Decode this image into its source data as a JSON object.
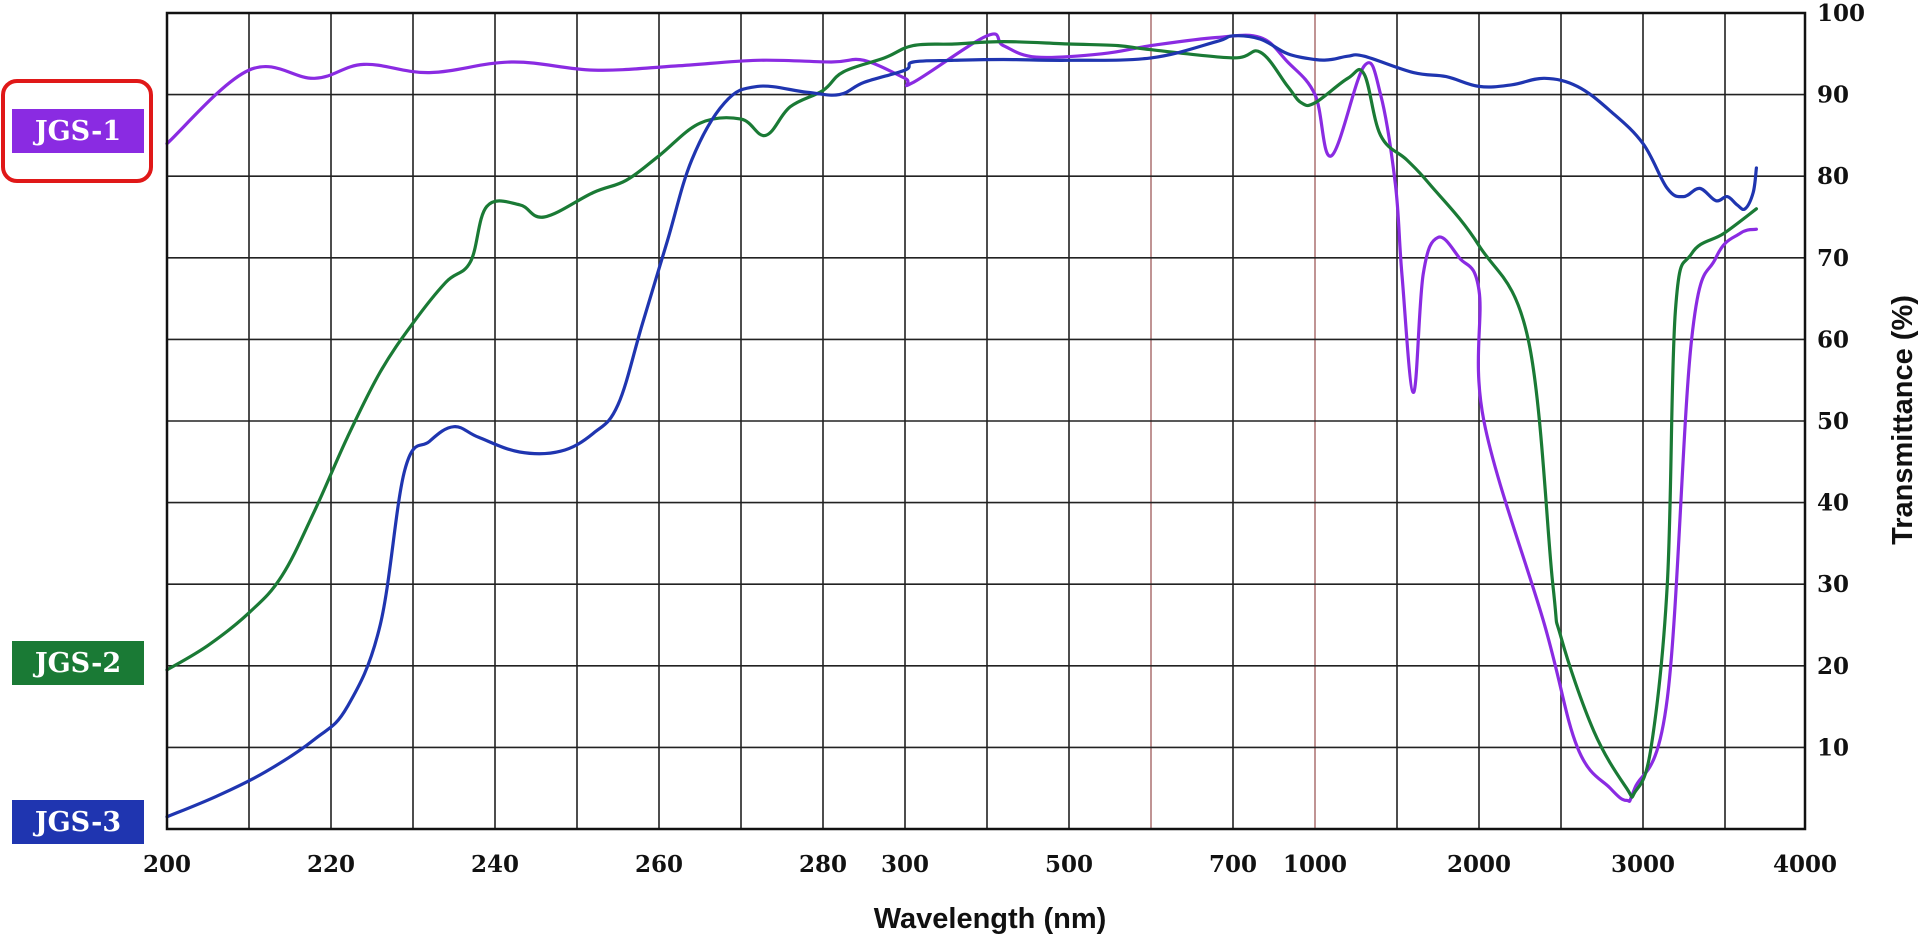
{
  "chart_data": {
    "type": "line",
    "title": "",
    "xlabel": "Wavelength (nm)",
    "ylabel": "Transmittance (%)",
    "x_tick_labels": [
      "200",
      "220",
      "240",
      "260",
      "280",
      "300",
      "500",
      "700",
      "1000",
      "2000",
      "3000",
      "4000"
    ],
    "y_tick_labels": [
      "10",
      "20",
      "30",
      "40",
      "50",
      "60",
      "70",
      "80",
      "90",
      "100"
    ],
    "ylim": [
      0,
      100
    ],
    "x_scale": "segmented",
    "grid": true,
    "legend_placement": "left",
    "highlighted_series": "JGS-1",
    "series": [
      {
        "name": "JGS-1",
        "color": "#8a2be2",
        "points": [
          [
            200,
            84
          ],
          [
            210,
            93
          ],
          [
            218,
            92
          ],
          [
            224,
            93.7
          ],
          [
            232,
            92.7
          ],
          [
            242,
            94
          ],
          [
            252,
            93
          ],
          [
            262,
            93.5
          ],
          [
            272,
            94.2
          ],
          [
            282,
            94
          ],
          [
            290,
            94.2
          ],
          [
            300,
            92
          ],
          [
            310,
            91.5
          ],
          [
            400,
            97.2
          ],
          [
            420,
            96
          ],
          [
            460,
            94.6
          ],
          [
            540,
            95
          ],
          [
            600,
            96
          ],
          [
            680,
            97
          ],
          [
            800,
            97
          ],
          [
            900,
            94
          ],
          [
            1000,
            90
          ],
          [
            1100,
            82.5
          ],
          [
            1300,
            93.5
          ],
          [
            1400,
            90
          ],
          [
            1490,
            79
          ],
          [
            1530,
            68
          ],
          [
            1600,
            53.5
          ],
          [
            1660,
            68
          ],
          [
            1750,
            72.5
          ],
          [
            1880,
            70
          ],
          [
            2000,
            66
          ],
          [
            2030,
            50
          ],
          [
            2400,
            25
          ],
          [
            2600,
            10
          ],
          [
            2800,
            5
          ],
          [
            2900,
            3.5
          ],
          [
            2950,
            5
          ],
          [
            3150,
            16
          ],
          [
            3300,
            60
          ],
          [
            3450,
            70
          ],
          [
            3600,
            73
          ],
          [
            3700,
            73.5
          ]
        ]
      },
      {
        "name": "JGS-2",
        "color": "#1a7a35",
        "points": [
          [
            200,
            19.5
          ],
          [
            205,
            22.5
          ],
          [
            210,
            26.5
          ],
          [
            214,
            31
          ],
          [
            218,
            39
          ],
          [
            222,
            48
          ],
          [
            226,
            56
          ],
          [
            230,
            62
          ],
          [
            234,
            67
          ],
          [
            237,
            69.5
          ],
          [
            239,
            76.3
          ],
          [
            243,
            76.5
          ],
          [
            246,
            75
          ],
          [
            252,
            78
          ],
          [
            256,
            79.5
          ],
          [
            260,
            82.5
          ],
          [
            265,
            86.5
          ],
          [
            270,
            87
          ],
          [
            273,
            85
          ],
          [
            276,
            88.5
          ],
          [
            280,
            90.5
          ],
          [
            285,
            92.8
          ],
          [
            295,
            94.5
          ],
          [
            310,
            96
          ],
          [
            360,
            96.2
          ],
          [
            420,
            96.5
          ],
          [
            500,
            96.2
          ],
          [
            560,
            96
          ],
          [
            600,
            95.5
          ],
          [
            700,
            94.5
          ],
          [
            800,
            95.2
          ],
          [
            900,
            91
          ],
          [
            950,
            89
          ],
          [
            1000,
            89
          ],
          [
            1200,
            92
          ],
          [
            1300,
            92.5
          ],
          [
            1400,
            85
          ],
          [
            1560,
            82
          ],
          [
            1700,
            79
          ],
          [
            2000,
            71.5
          ],
          [
            2300,
            60
          ],
          [
            2450,
            30
          ],
          [
            2500,
            23.5
          ],
          [
            2700,
            12
          ],
          [
            2900,
            5
          ],
          [
            2950,
            4.5
          ],
          [
            3050,
            10
          ],
          [
            3150,
            30
          ],
          [
            3200,
            63.5
          ],
          [
            3300,
            70.5
          ],
          [
            3500,
            73
          ],
          [
            3700,
            76
          ]
        ]
      },
      {
        "name": "JGS-3",
        "color": "#1f35b0",
        "points": [
          [
            200,
            1.5
          ],
          [
            206,
            4
          ],
          [
            212,
            7
          ],
          [
            218,
            11
          ],
          [
            222,
            15
          ],
          [
            226,
            25
          ],
          [
            229,
            44
          ],
          [
            232,
            47.5
          ],
          [
            235,
            49.3
          ],
          [
            238,
            48
          ],
          [
            243,
            46.2
          ],
          [
            248,
            46.3
          ],
          [
            252,
            48.5
          ],
          [
            255,
            52
          ],
          [
            258,
            62
          ],
          [
            261,
            72
          ],
          [
            264,
            82
          ],
          [
            268,
            89
          ],
          [
            272,
            91
          ],
          [
            278,
            90.3
          ],
          [
            284,
            90
          ],
          [
            290,
            91.5
          ],
          [
            300,
            93
          ],
          [
            310,
            94
          ],
          [
            360,
            94.2
          ],
          [
            420,
            94.3
          ],
          [
            500,
            94.2
          ],
          [
            600,
            94.5
          ],
          [
            680,
            96.5
          ],
          [
            700,
            97.2
          ],
          [
            800,
            96.8
          ],
          [
            900,
            95
          ],
          [
            1000,
            94.3
          ],
          [
            1100,
            94.3
          ],
          [
            1200,
            94.7
          ],
          [
            1300,
            94.7
          ],
          [
            1600,
            92.7
          ],
          [
            1800,
            92.2
          ],
          [
            2000,
            91
          ],
          [
            2200,
            91.2
          ],
          [
            2400,
            92
          ],
          [
            2600,
            91
          ],
          [
            2800,
            88
          ],
          [
            3000,
            84
          ],
          [
            3150,
            78.5
          ],
          [
            3250,
            77.5
          ],
          [
            3350,
            78.5
          ],
          [
            3450,
            77
          ],
          [
            3520,
            77.5
          ],
          [
            3580,
            76.5
          ],
          [
            3630,
            76
          ],
          [
            3680,
            78
          ],
          [
            3700,
            81
          ]
        ]
      }
    ]
  }
}
